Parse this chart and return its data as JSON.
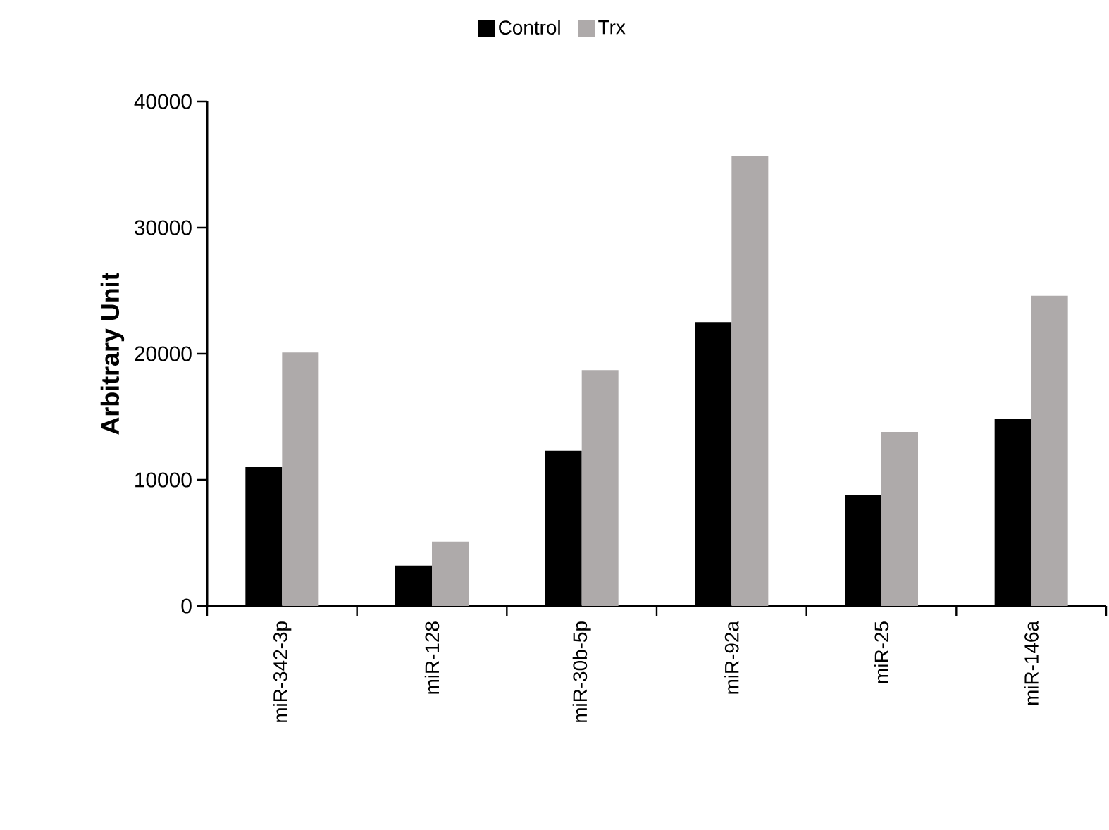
{
  "chart_data": {
    "type": "bar",
    "ylabel": "Arbitrary Unit",
    "categories": [
      "miR-342-3p",
      "miR-128",
      "miR-30b-5p",
      "miR-92a",
      "miR-25",
      "miR-146a"
    ],
    "series": [
      {
        "name": "Control",
        "color": "#000000",
        "values": [
          11000,
          3200,
          12300,
          22500,
          8800,
          14800
        ]
      },
      {
        "name": "Trx",
        "color": "#aeaaaa",
        "values": [
          20100,
          5100,
          18700,
          35700,
          13800,
          24600
        ]
      }
    ],
    "ylim": [
      0,
      40000
    ],
    "yticks": [
      0,
      10000,
      20000,
      30000,
      40000
    ],
    "legend": "top",
    "grid": false
  }
}
